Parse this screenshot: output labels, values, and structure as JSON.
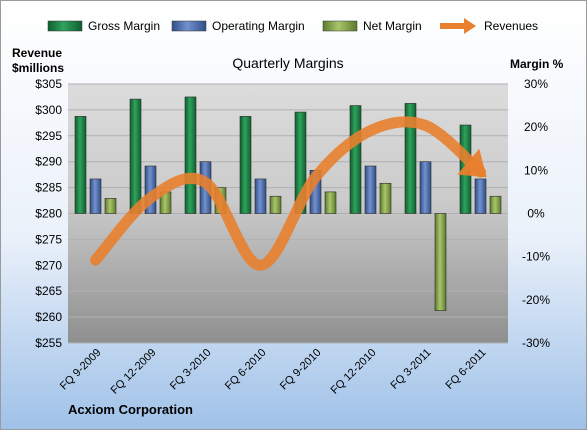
{
  "chart_data": {
    "type": "bar",
    "title": "Quarterly Margins",
    "company": "Acxiom Corporation",
    "left_axis_label": [
      "Revenue",
      "$millions"
    ],
    "right_axis_label": "Margin %",
    "categories": [
      "FQ 9-2009",
      "FQ 12-2009",
      "FQ 3-2010",
      "FQ 6-2010",
      "FQ 9-2010",
      "FQ 12-2010",
      "FQ 3-2011",
      "FQ 6-2011"
    ],
    "left_axis": {
      "min": 255,
      "max": 305,
      "step": 5,
      "tick_labels": [
        "$255",
        "$260",
        "$265",
        "$270",
        "$275",
        "$280",
        "$285",
        "$290",
        "$295",
        "$300",
        "$305"
      ]
    },
    "right_axis": {
      "min": -30,
      "max": 30,
      "step": 10,
      "tick_labels": [
        "-30%",
        "-20%",
        "-10%",
        "0%",
        "10%",
        "20%",
        "30%"
      ]
    },
    "series": [
      {
        "name": "Gross Margin",
        "axis": "right",
        "color": "#1e8a4a",
        "values": [
          22.5,
          26.5,
          27,
          22.5,
          23.5,
          25,
          25.5,
          20.5
        ]
      },
      {
        "name": "Operating Margin",
        "axis": "right",
        "color": "#4f74b8",
        "values": [
          8,
          11,
          12,
          8,
          10,
          11,
          12,
          8
        ]
      },
      {
        "name": "Net Margin",
        "axis": "right",
        "color": "#86a845",
        "values": [
          3.5,
          5,
          6,
          4,
          5,
          7,
          -22.5,
          4
        ]
      },
      {
        "name": "Revenues",
        "axis": "left",
        "type": "line",
        "color": "#e8802e",
        "values": [
          271,
          283,
          286,
          270,
          287,
          296,
          297,
          288
        ]
      }
    ],
    "legend_position": "top",
    "grid": true
  }
}
